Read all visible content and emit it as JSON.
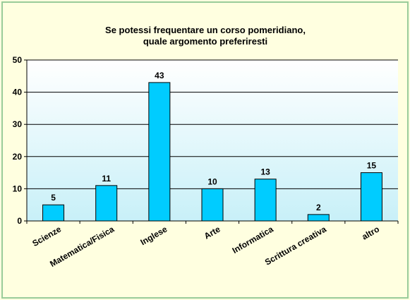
{
  "chart_data": {
    "type": "bar",
    "title_lines": [
      "Se potessi  frequentare un corso  pomeridiano,",
      "quale argomento preferiresti"
    ],
    "categories": [
      "Scienze",
      "Matematica/Fisica",
      "Inglese",
      "Arte",
      "Informatica",
      "Scrittura creativa",
      "altro"
    ],
    "values": [
      5,
      11,
      43,
      10,
      13,
      2,
      15
    ],
    "data_labels": [
      "5",
      "11",
      "43",
      "10",
      "13",
      "2",
      "15"
    ],
    "ylim": [
      0,
      50
    ],
    "yticks": [
      0,
      10,
      20,
      30,
      40,
      50
    ],
    "ytick_labels": [
      "0",
      "10",
      "20",
      "30",
      "40",
      "50"
    ],
    "grid": true,
    "legend": "none",
    "colors": {
      "bar_fill": "#00ccff",
      "bar_stroke": "#000000",
      "border": "#99cc99",
      "page_background": "#ffffe0",
      "plot_gradient_top": "#ffffff",
      "plot_gradient_bottom": "#c8f0f8",
      "gridline": "#000000"
    }
  }
}
